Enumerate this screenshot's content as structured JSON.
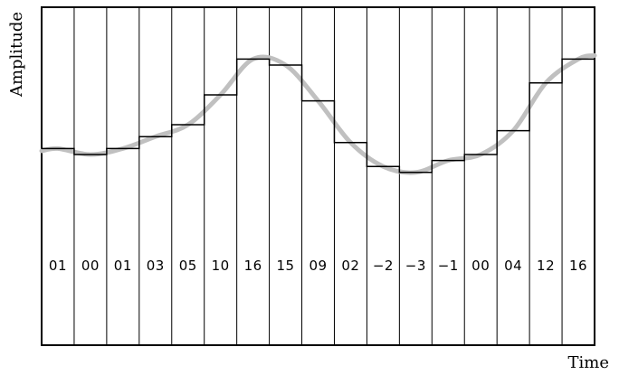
{
  "labels": {
    "y_axis": "Amplitude",
    "x_axis": "Time"
  },
  "chart_data": {
    "type": "line",
    "samples": [
      "01",
      "00",
      "01",
      "03",
      "05",
      "10",
      "16",
      "15",
      "09",
      "02",
      "−2",
      "−3",
      "−1",
      "00",
      "04",
      "12",
      "16"
    ],
    "values": [
      1,
      0,
      1,
      3,
      5,
      10,
      16,
      15,
      9,
      2,
      -2,
      -3,
      -1,
      0,
      4,
      12,
      16
    ],
    "colors": {
      "signal": "#c0c0c0",
      "quantized": "#000000"
    }
  }
}
